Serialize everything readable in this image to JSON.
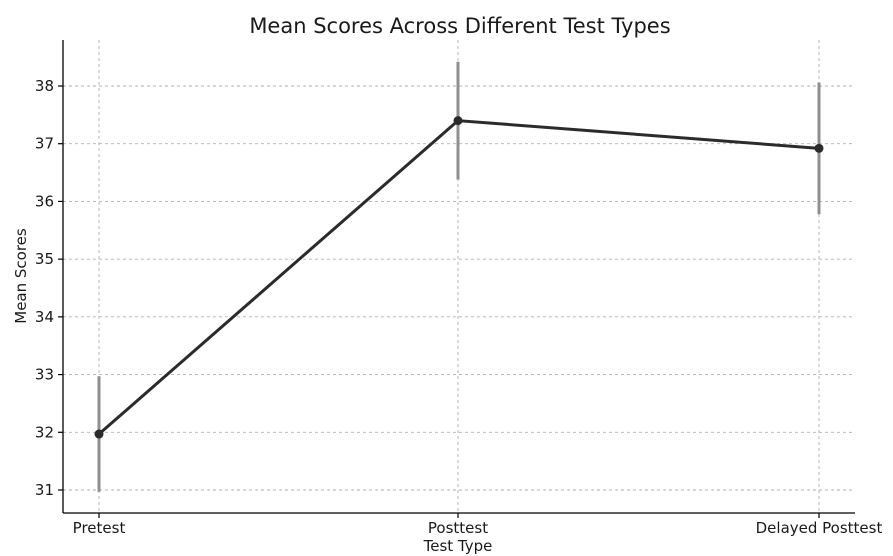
{
  "chart_data": {
    "type": "line",
    "title": "Mean Scores Across Different Test Types",
    "xlabel": "Test Type",
    "ylabel": "Mean Scores",
    "categories": [
      "Pretest",
      "Posttest",
      "Delayed Posttest"
    ],
    "series": [
      {
        "values": [
          31.97,
          37.4,
          36.92
        ],
        "error_low": [
          30.97,
          36.38,
          35.78
        ],
        "error_high": [
          32.97,
          38.42,
          38.06
        ]
      }
    ],
    "yticks": [
      31,
      32,
      33,
      34,
      35,
      36,
      37,
      38
    ],
    "ylim": [
      30.6,
      38.8
    ],
    "grid": true,
    "line_color": "#2b2b2b",
    "error_color": "#8f8f8f"
  }
}
